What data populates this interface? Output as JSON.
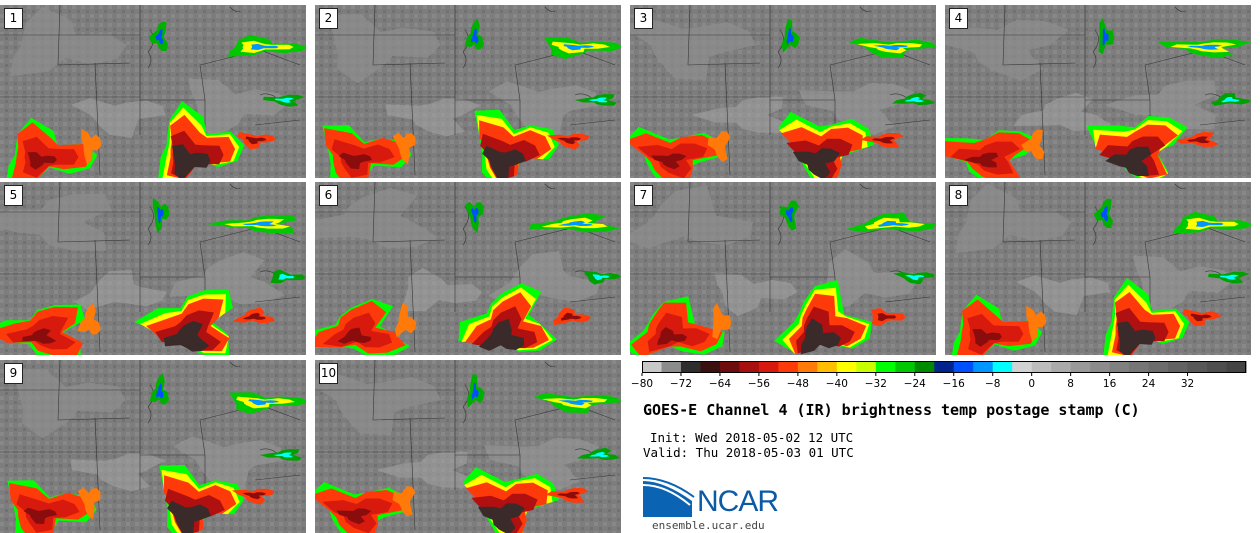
{
  "panels": [
    {
      "label": "1"
    },
    {
      "label": "2"
    },
    {
      "label": "3"
    },
    {
      "label": "4"
    },
    {
      "label": "5"
    },
    {
      "label": "6"
    },
    {
      "label": "7"
    },
    {
      "label": "8"
    },
    {
      "label": "9"
    },
    {
      "label": "10"
    }
  ],
  "colorbar": {
    "ticks": [
      "-80",
      "-72",
      "-64",
      "-56",
      "-48",
      "-40",
      "-32",
      "-24",
      "-16",
      "-8",
      "0",
      "8",
      "16",
      "24",
      "32"
    ],
    "colors": [
      "#c8c8c8",
      "#8c8c8c",
      "#2e2e2e",
      "#3a1010",
      "#6e0d0d",
      "#a80f0f",
      "#d71a0d",
      "#ff3a0a",
      "#ff7a08",
      "#ffbf00",
      "#ffff00",
      "#c8ff00",
      "#00ff00",
      "#00c800",
      "#008a00",
      "#00238c",
      "#0050ff",
      "#0096ff",
      "#00ffff",
      "#d2d2d2",
      "#bcbcbc",
      "#aaaaaa",
      "#999999",
      "#8c8c8c",
      "#808080",
      "#767676",
      "#6c6c6c",
      "#626262",
      "#585858",
      "#4e4e4e",
      "#444444"
    ]
  },
  "title": "GOES-E Channel 4 (IR) brightness temp postage stamp (C)",
  "init_text": "Init: Wed 2018-05-02 12 UTC",
  "valid_text": "Valid: Thu 2018-05-03 01 UTC",
  "logo": {
    "text": "NCAR",
    "url": "ensemble.ucar.edu"
  }
}
